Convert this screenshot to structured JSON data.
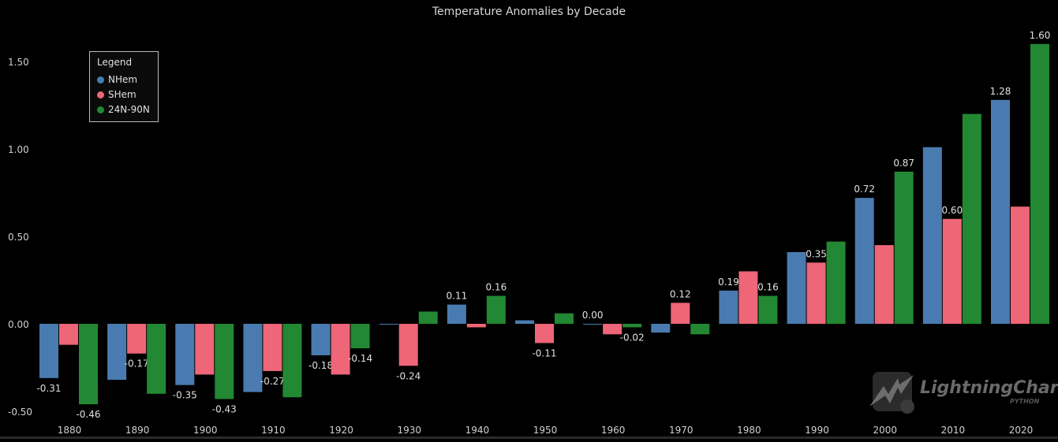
{
  "chart_data": {
    "type": "bar",
    "title": "Temperature Anomalies by Decade",
    "xlabel": "",
    "ylabel": "",
    "ylim": [
      -0.5,
      1.6
    ],
    "yticks": [
      "-0.50",
      "0.00",
      "0.50",
      "1.00",
      "1.50"
    ],
    "grid": false,
    "legend": {
      "title": "Legend",
      "placement": "top-left"
    },
    "categories": [
      "1880",
      "1890",
      "1900",
      "1910",
      "1920",
      "1930",
      "1940",
      "1950",
      "1960",
      "1970",
      "1980",
      "1990",
      "2000",
      "2010",
      "2020"
    ],
    "series": [
      {
        "name": "NHem",
        "color": "#4a7bb0",
        "values": [
          -0.31,
          -0.32,
          -0.35,
          -0.39,
          -0.18,
          0.0,
          0.11,
          0.02,
          0.0,
          -0.05,
          0.19,
          0.41,
          0.72,
          1.01,
          1.28
        ],
        "labels": [
          "-0.31",
          null,
          "-0.35",
          null,
          "-0.18",
          null,
          "0.11",
          null,
          "0.00",
          null,
          "0.19",
          null,
          "0.72",
          null,
          "1.28"
        ]
      },
      {
        "name": "SHem",
        "color": "#ee6677",
        "values": [
          -0.12,
          -0.17,
          -0.29,
          -0.27,
          -0.29,
          -0.24,
          -0.02,
          -0.11,
          -0.06,
          0.12,
          0.3,
          0.35,
          0.45,
          0.6,
          0.67
        ],
        "labels": [
          null,
          "-0.17",
          null,
          "-0.27",
          null,
          "-0.24",
          null,
          "-0.11",
          null,
          "0.12",
          null,
          "0.35",
          null,
          "0.60",
          null
        ]
      },
      {
        "name": "24N-90N",
        "color": "#228833",
        "values": [
          -0.46,
          -0.4,
          -0.43,
          -0.42,
          -0.14,
          0.07,
          0.16,
          0.06,
          -0.02,
          -0.06,
          0.16,
          0.47,
          0.87,
          1.2,
          1.6
        ],
        "labels": [
          "-0.46",
          null,
          "-0.43",
          null,
          "-0.14",
          null,
          "0.16",
          null,
          "-0.02",
          null,
          "0.16",
          null,
          "0.87",
          null,
          "1.60"
        ]
      }
    ]
  },
  "branding": {
    "logo_text": "LightningChart®",
    "logo_sub": "PYTHON"
  }
}
